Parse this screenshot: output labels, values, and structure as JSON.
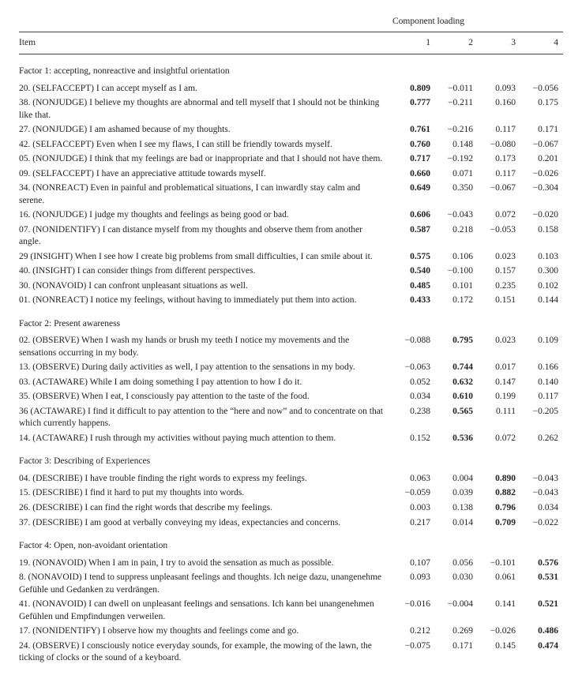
{
  "columns": {
    "item_header": "Item",
    "component_header": "Component loading",
    "c1": "1",
    "c2": "2",
    "c3": "3",
    "c4": "4"
  },
  "factors": [
    {
      "title": "Factor 1: accepting, nonreactive and insightful orientation",
      "rows": [
        {
          "text": "20. (SELFACCEPT) I can accept myself as I am.",
          "v": [
            "0.809",
            "−0.011",
            "0.093",
            "−0.056"
          ],
          "bold": 0
        },
        {
          "text": "38. (NONJUDGE) I believe my thoughts are abnormal and tell myself that I should not be thinking like that.",
          "v": [
            "0.777",
            "−0.211",
            "0.160",
            "0.175"
          ],
          "bold": 0
        },
        {
          "text": "27. (NONJUDGE) I am ashamed because of my thoughts.",
          "v": [
            "0.761",
            "−0.216",
            "0.117",
            "0.171"
          ],
          "bold": 0
        },
        {
          "text": "42. (SELFACCEPT) Even when I see my flaws, I can still be friendly towards myself.",
          "v": [
            "0.760",
            "0.148",
            "−0.080",
            "−0.067"
          ],
          "bold": 0
        },
        {
          "text": "05. (NONJUDGE) I think that my feelings are bad or inappropriate and that I should not have them.",
          "v": [
            "0.717",
            "−0.192",
            "0.173",
            "0.201"
          ],
          "bold": 0
        },
        {
          "text": "09. (SELFACCEPT) I have an appreciative attitude towards myself.",
          "v": [
            "0.660",
            "0.071",
            "0.117",
            "−0.026"
          ],
          "bold": 0
        },
        {
          "text": "34. (NONREACT) Even in painful and problematical situations, I can inwardly stay calm and serene.",
          "v": [
            "0.649",
            "0.350",
            "−0.067",
            "−0.304"
          ],
          "bold": 0
        },
        {
          "text": "16. (NONJUDGE) I judge my thoughts and feelings as being good or bad.",
          "v": [
            "0.606",
            "−0.043",
            "0.072",
            "−0.020"
          ],
          "bold": 0
        },
        {
          "text": "07. (NONIDENTIFY) I can distance myself from my thoughts and observe them from another angle.",
          "v": [
            "0.587",
            "0.218",
            "−0.053",
            "0.158"
          ],
          "bold": 0
        },
        {
          "text": "29 (INSIGHT) When I see how I create big problems from small difficulties, I can smile about it.",
          "v": [
            "0.575",
            "0.106",
            "0.023",
            "0.103"
          ],
          "bold": 0
        },
        {
          "text": "40. (INSIGHT) I can consider things from different perspectives.",
          "v": [
            "0.540",
            "−0.100",
            "0.157",
            "0.300"
          ],
          "bold": 0
        },
        {
          "text": "30. (NONAVOID) I can confront unpleasant situations as well.",
          "v": [
            "0.485",
            "0.101",
            "0.235",
            "0.102"
          ],
          "bold": 0
        },
        {
          "text": "01. (NONREACT) I notice my feelings, without having to immediately put them into action.",
          "v": [
            "0.433",
            "0.172",
            "0.151",
            "0.144"
          ],
          "bold": 0
        }
      ]
    },
    {
      "title": "Factor 2: Present awareness",
      "rows": [
        {
          "text": "02. (OBSERVE) When I wash my hands or brush my teeth I notice my movements and the sensations occurring in my body.",
          "v": [
            "−0.088",
            "0.795",
            "0.023",
            "0.109"
          ],
          "bold": 1
        },
        {
          "text": "13. (OBSERVE) During daily activities as well, I pay attention to the sensations in my body.",
          "v": [
            "−0.063",
            "0.744",
            "0.017",
            "0.166"
          ],
          "bold": 1
        },
        {
          "text": "03. (ACTAWARE) While I am doing something I pay attention to how I do it.",
          "v": [
            "0.052",
            "0.632",
            "0.147",
            "0.140"
          ],
          "bold": 1
        },
        {
          "text": "35. (OBSERVE) When I eat, I consciously pay attention to the taste of the food.",
          "v": [
            "0.034",
            "0.610",
            "0.199",
            "0.117"
          ],
          "bold": 1
        },
        {
          "text": "36 (ACTAWARE) I find it difficult to pay attention to the “here and now” and to concentrate on that which currently happens.",
          "v": [
            "0.238",
            "0.565",
            "0.111",
            "−0.205"
          ],
          "bold": 1
        },
        {
          "text": "14. (ACTAWARE) I rush through my activities without paying much attention to them.",
          "v": [
            "0.152",
            "0.536",
            "0.072",
            "0.262"
          ],
          "bold": 1
        }
      ]
    },
    {
      "title": "Factor 3: Describing of Experiences",
      "rows": [
        {
          "text": "04. (DESCRIBE) I have trouble finding the right words to express my feelings.",
          "v": [
            "0.063",
            "0.004",
            "0.890",
            "−0.043"
          ],
          "bold": 2
        },
        {
          "text": "15. (DESCRIBE) I find it hard to put my thoughts into words.",
          "v": [
            "−0.059",
            "0.039",
            "0.882",
            "−0.043"
          ],
          "bold": 2
        },
        {
          "text": "26. (DESCRIBE) I can find the right words that describe my feelings.",
          "v": [
            "0.003",
            "0.138",
            "0.796",
            "0.034"
          ],
          "bold": 2
        },
        {
          "text": "37. (DESCRIBE) I am good at verbally conveying my ideas, expectancies and concerns.",
          "v": [
            "0.217",
            "0.014",
            "0.709",
            "−0.022"
          ],
          "bold": 2
        }
      ]
    },
    {
      "title": "Factor 4: Open, non-avoidant orientation",
      "rows": [
        {
          "text": "19. (NONAVOID) When I am in pain, I try to avoid the sensation as much as possible.",
          "v": [
            "0.107",
            "0.056",
            "−0.101",
            "0.576"
          ],
          "bold": 3
        },
        {
          "text": "8. (NONAVOID) I tend to suppress unpleasant feelings and thoughts. Ich neige dazu, unangenehme Gefühle und Gedanken zu verdrängen.",
          "v": [
            "0.093",
            "0.030",
            "0.061",
            "0.531"
          ],
          "bold": 3
        },
        {
          "text": "41. (NONAVOID) I can dwell on unpleasant feelings and sensations. Ich kann bei unangenehmen Gefühlen und Empfindungen verweilen.",
          "v": [
            "−0.016",
            "−0.004",
            "0.141",
            "0.521"
          ],
          "bold": 3
        },
        {
          "text": "17. (NONIDENTIFY) I observe how my thoughts and feelings come and go.",
          "v": [
            "0.212",
            "0.269",
            "−0.026",
            "0.486"
          ],
          "bold": 3
        },
        {
          "text": "24. (OBSERVE) I consciously notice everyday sounds, for example, the mowing of the lawn, the ticking of clocks or the sound of a keyboard.",
          "v": [
            "−0.075",
            "0.171",
            "0.145",
            "0.474"
          ],
          "bold": 3
        }
      ]
    }
  ]
}
